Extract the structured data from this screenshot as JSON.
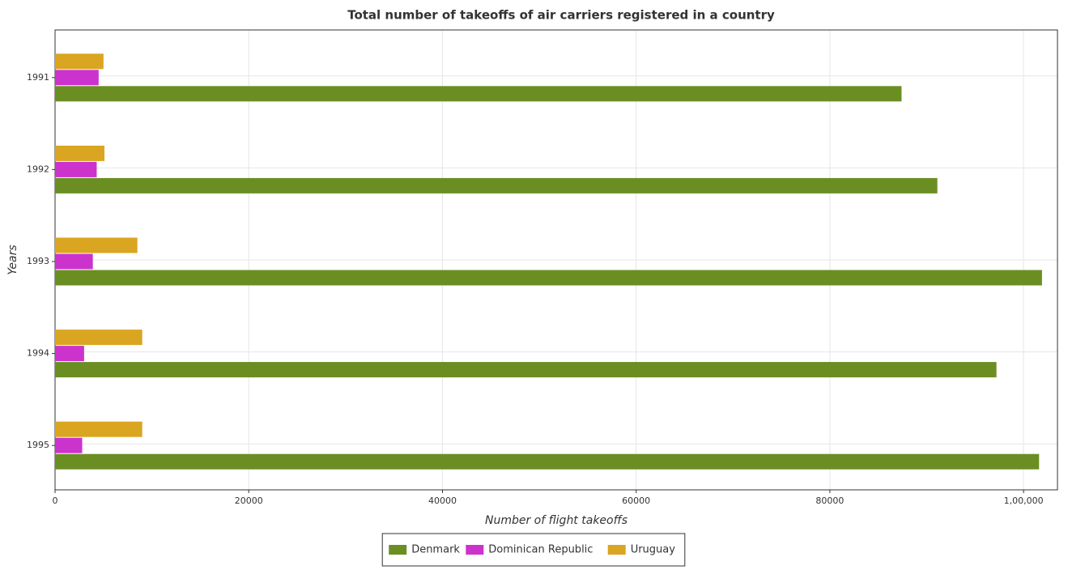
{
  "chart_data": {
    "type": "barh",
    "title": "Total number of takeoffs of air carriers registered in a country",
    "xlabel": "Number of flight takeoffs",
    "ylabel": "Years",
    "categories": [
      "1991",
      "1992",
      "1993",
      "1994",
      "1995"
    ],
    "series": [
      {
        "name": "Denmark",
        "color": "#6b8e23",
        "values": [
          87400,
          91100,
          101900,
          97200,
          101600
        ]
      },
      {
        "name": "Dominican Republic",
        "color": "#cc33cc",
        "values": [
          4500,
          4300,
          3900,
          3000,
          2800
        ]
      },
      {
        "name": "Uruguay",
        "color": "#daa520",
        "values": [
          5000,
          5100,
          8500,
          9000,
          9000
        ]
      }
    ],
    "xlim": [
      0,
      103500
    ],
    "xticks": [
      0,
      20000,
      40000,
      60000,
      80000,
      {
        "value": 100000,
        "label": "1,00,000"
      }
    ],
    "grid": true,
    "legend": "bottom"
  }
}
